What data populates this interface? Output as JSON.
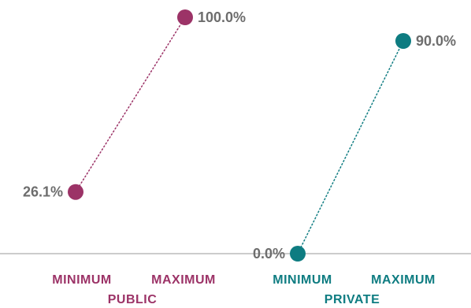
{
  "chart_data": {
    "type": "line",
    "ylim": [
      0,
      100
    ],
    "grid": false,
    "legend": "none",
    "groups": [
      {
        "name": "PUBLIC",
        "color": "#9c3367",
        "categories": [
          "MINIMUM",
          "MAXIMUM"
        ],
        "values": [
          26.1,
          100.0
        ],
        "labels": [
          "26.1%",
          "100.0%"
        ]
      },
      {
        "name": "PRIVATE",
        "color": "#0e7c81",
        "categories": [
          "MINIMUM",
          "MAXIMUM"
        ],
        "values": [
          0.0,
          90.0
        ],
        "labels": [
          "0.0%",
          "90.0%"
        ]
      }
    ]
  }
}
